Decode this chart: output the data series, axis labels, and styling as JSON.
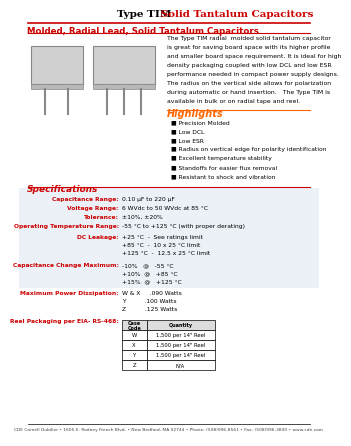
{
  "title_black": "Type TIM",
  "title_red": " Solid Tantalum Capacitors",
  "subtitle": "Molded, Radial Lead, Solid Tantalum Capacitors",
  "description": "The Type TIM radial  molded solid tantalum capacitor\nis great for saving board space with its higher profile\nand smaller board space requirement. It is ideal for high\ndensity packaging coupled with low DCL and low ESR\nperformance needed in compact power supply designs.\nThe radius on the vertical side allows for polarization\nduring automatic or hand insertion.   The Type TIM is\navailable in bulk or on radial tape and reel.",
  "highlights_title": "Highlights",
  "highlights": [
    "Precision Molded",
    "Low DCL",
    "Low ESR",
    "Radius on vertical edge for polarity identification",
    "Excellent temperature stability",
    "Standoffs for easier flux removal",
    "Resistant to shock and vibration"
  ],
  "spec_title": "Specifications",
  "spec_cap_range_label": "Capacitance Range:",
  "spec_cap_range_val": "0.10 µF to 220 µF",
  "spec_volt_label": "Voltage Range:",
  "spec_volt_val": "6 WVdc to 50 WVdc at 85 °C",
  "spec_tol_label": "Tolerance:",
  "spec_tol_val": "±10%, ±20%",
  "spec_temp_label": "Operating Temperature Range:",
  "spec_temp_val": "-55 °C to +125 °C (with proper derating)",
  "spec_dcl_label": "DC Leakage:",
  "spec_dcl_lines": [
    "+25 °C  -  See ratings limit",
    "+85 °C  -  10 x 25 °C limit",
    "+125 °C  -  12.5 x 25 °C limit"
  ],
  "spec_cap_chg_label": "Capacitance Change Maximum:",
  "spec_cap_chg_lines": [
    "-10%   @   -55 °C",
    "+10%  @   +85 °C",
    "+15%  @   +125 °C"
  ],
  "spec_power_label": "Maximum Power Dissipation:",
  "spec_power_lines": [
    "W & X     .090 Watts",
    "Y          .100 Watts",
    "Z          .125 Watts"
  ],
  "spec_reel_label": "Reel Packaging per EIA- RS-468:",
  "table_headers": [
    "Case\nCode",
    "Quantity"
  ],
  "table_rows": [
    [
      "W",
      "1,500 per 14\" Reel"
    ],
    [
      "X",
      "1,500 per 14\" Reel"
    ],
    [
      "Y",
      "1,500 per 14\" Reel"
    ],
    [
      "Z",
      "N/A"
    ]
  ],
  "footer": "CDE Cornell Dubilier • 1605 E. Rodney French Blvd. • New Bedford, MA 02744 • Phone: (508)996-8561 • Fax: (508)996-3830 • www.cde.com",
  "red_color": "#CC0000",
  "orange_color": "#FF6600",
  "bg_color": "#FFFFFF",
  "watermark_color": "#C8D8E8"
}
